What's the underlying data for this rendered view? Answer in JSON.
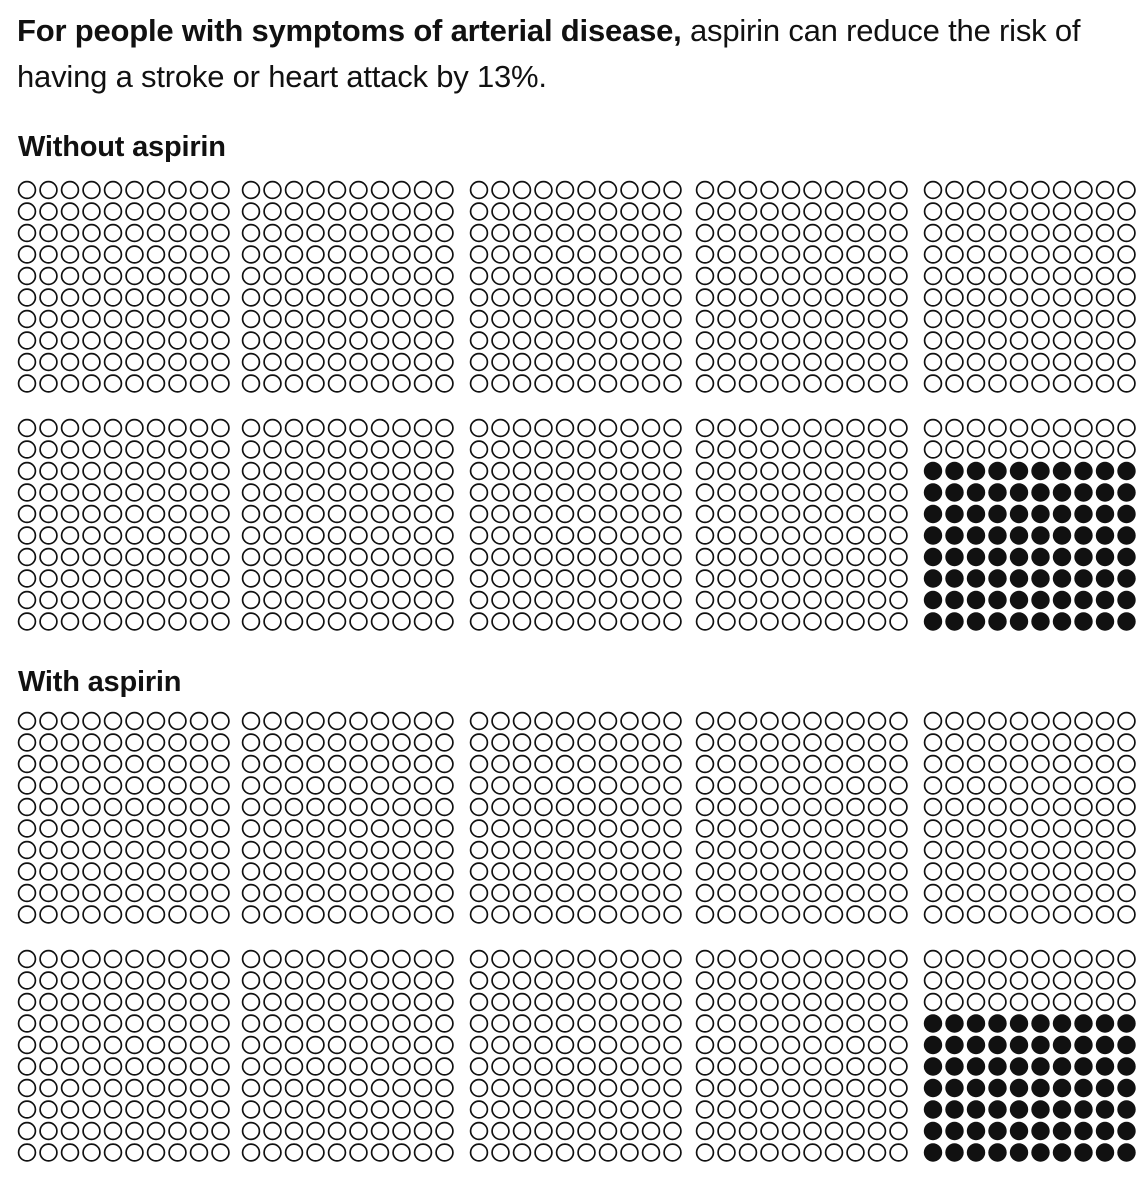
{
  "headline": {
    "bold": "For people with symptoms of arterial disease,",
    "rest": " aspirin can reduce the risk of having a stroke or heart attack by 13%."
  },
  "colors": {
    "ink": "#111111",
    "background": "#ffffff"
  },
  "chart_data": [
    {
      "type": "waffle",
      "title": "Without aspirin",
      "people_total": 1000,
      "blocks": 10,
      "people_per_block": 100,
      "people_with_event": 80,
      "marker_filled": "event (stroke or heart attack)",
      "marker_hollow": "no event"
    },
    {
      "type": "waffle",
      "title": "With aspirin",
      "people_total": 1000,
      "blocks": 10,
      "people_per_block": 100,
      "people_with_event": 70,
      "marker_filled": "event (stroke or heart attack)",
      "marker_hollow": "no event"
    }
  ]
}
